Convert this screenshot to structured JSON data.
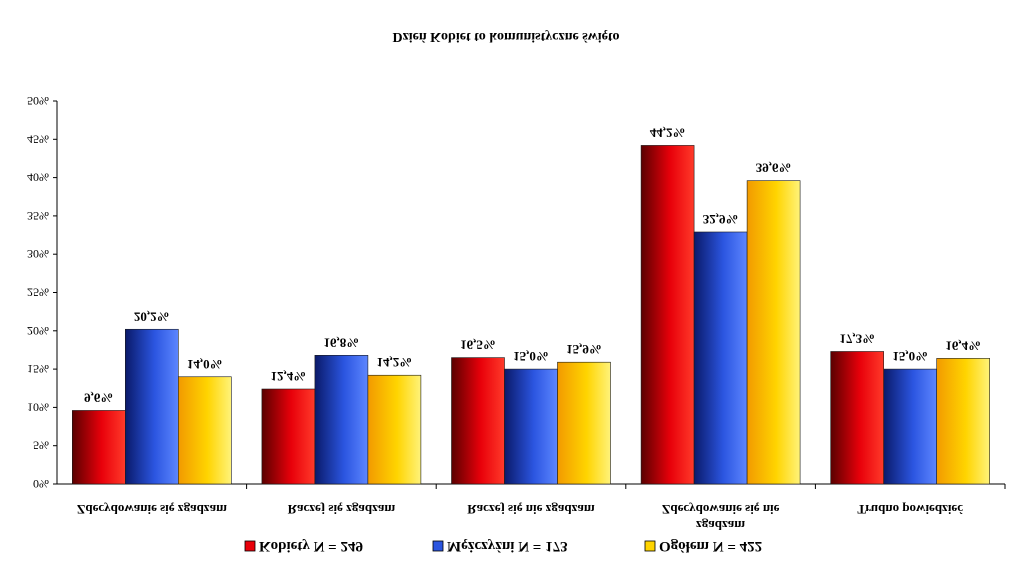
{
  "chart_data": {
    "type": "bar",
    "orientation": "vertical-inverted",
    "title": "",
    "xlabel": "Dzień Kobiet to komunistyczne święto",
    "ylabel": "",
    "ylim": [
      0,
      50
    ],
    "y_ticks": [
      "0%",
      "5%",
      "10%",
      "15%",
      "20%",
      "25%",
      "30%",
      "35%",
      "40%",
      "45%",
      "50%"
    ],
    "categories": [
      [
        "Zdecydowanie się zgadzam"
      ],
      [
        "Raczej się zgadzam"
      ],
      [
        "Raczej się nie zgadzam"
      ],
      [
        "Zdecydowanie się nie",
        "zgadzam"
      ],
      [
        "Trudno powiedzieć"
      ]
    ],
    "series": [
      {
        "name": "Kobiety N = 249",
        "color": "#e8000a",
        "values": [
          9.6,
          12.4,
          16.5,
          44.2,
          17.3
        ],
        "labels": [
          "9,6%",
          "12,4%",
          "16,5%",
          "44,2%",
          "17,3%"
        ]
      },
      {
        "name": "Mężczyźni N = 173",
        "color": "#2b55e0",
        "values": [
          20.2,
          16.8,
          15.0,
          32.9,
          15.0
        ],
        "labels": [
          "20,2%",
          "16,8%",
          "15,0%",
          "32,9%",
          "15,0%"
        ]
      },
      {
        "name": "Ogółem N = 422",
        "color": "#ffd400",
        "values": [
          14.0,
          14.2,
          15.9,
          39.6,
          16.4
        ],
        "labels": [
          "14,0%",
          "14,2%",
          "15,9%",
          "39,6%",
          "16,4%"
        ]
      }
    ],
    "legend_position": "top",
    "grid": false,
    "category_labels_position": "top",
    "rendered_mirrored": true
  }
}
